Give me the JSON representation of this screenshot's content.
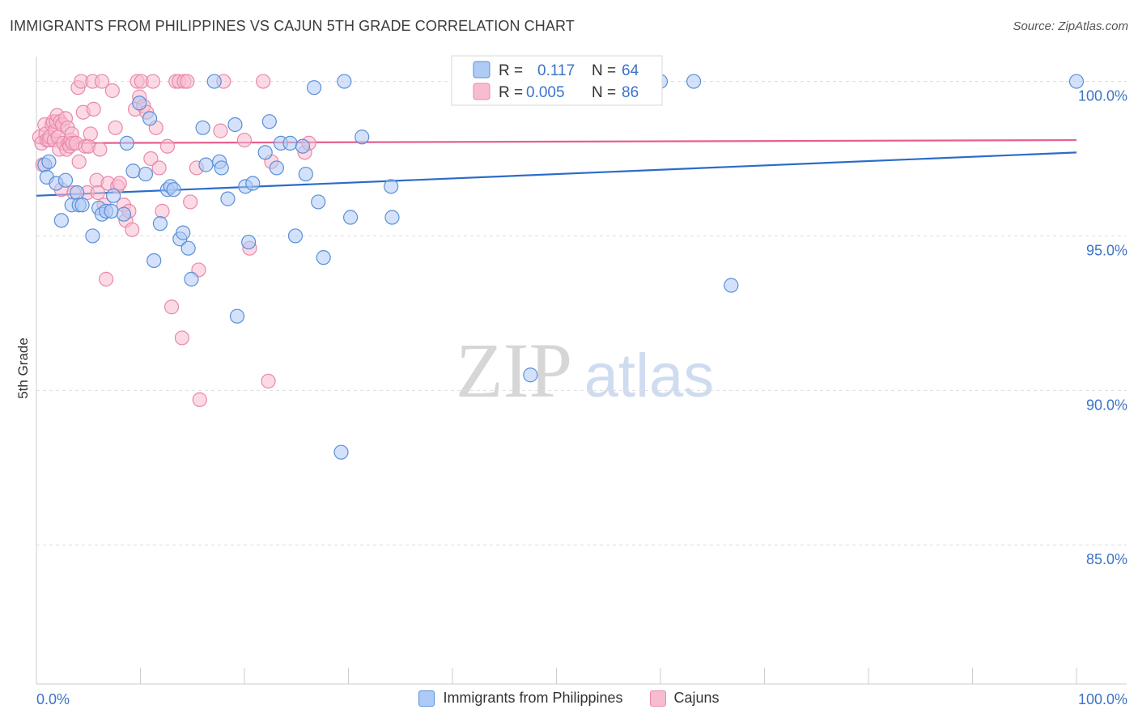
{
  "title": "IMMIGRANTS FROM PHILIPPINES VS CAJUN 5TH GRADE CORRELATION CHART",
  "source": "Source: ZipAtlas.com",
  "watermark": {
    "zip": "ZIP",
    "atlas": "atlas"
  },
  "colors": {
    "blue_fill": "#aecbf5",
    "blue_stroke": "#5a8fd8",
    "blue_line": "#2b6cc9",
    "pink_fill": "#f7bcd0",
    "pink_stroke": "#e889a8",
    "pink_line": "#e5608e",
    "axis_text": "#3b73c9",
    "grid": "#dddddd"
  },
  "chart_data": {
    "type": "scatter",
    "xlabel": "",
    "ylabel": "5th Grade",
    "xlim": [
      0,
      100
    ],
    "ylim": [
      80.5,
      100.8
    ],
    "x_tick_labels": [
      {
        "value": 0,
        "label": "0.0%"
      },
      {
        "value": 100,
        "label": "100.0%"
      }
    ],
    "y_ticks": [
      {
        "value": 100,
        "label": "100.0%"
      },
      {
        "value": 95,
        "label": "95.0%"
      },
      {
        "value": 90,
        "label": "90.0%"
      },
      {
        "value": 85,
        "label": "85.0%"
      }
    ],
    "legend_stats": [
      {
        "r_label": "R =",
        "r_value": "0.117",
        "n_label": "N =",
        "n_value": "64"
      },
      {
        "r_label": "R =",
        "r_value": "0.005",
        "n_label": "N =",
        "n_value": "86"
      }
    ],
    "series": [
      {
        "name": "Immigrants from Philippines",
        "trend": [
          [
            0,
            96.3
          ],
          [
            100,
            97.7
          ]
        ],
        "points": [
          [
            0.8,
            97.3
          ],
          [
            1.0,
            96.9
          ],
          [
            1.2,
            97.4
          ],
          [
            1.9,
            96.7
          ],
          [
            2.4,
            95.5
          ],
          [
            2.8,
            96.8
          ],
          [
            3.4,
            96.0
          ],
          [
            3.9,
            96.4
          ],
          [
            4.1,
            96.0
          ],
          [
            4.4,
            96.0
          ],
          [
            5.4,
            95.0
          ],
          [
            6.0,
            95.9
          ],
          [
            6.3,
            95.7
          ],
          [
            6.7,
            95.8
          ],
          [
            7.2,
            95.8
          ],
          [
            7.4,
            96.3
          ],
          [
            8.4,
            95.7
          ],
          [
            8.7,
            98.0
          ],
          [
            9.3,
            97.1
          ],
          [
            9.9,
            99.3
          ],
          [
            10.5,
            97.0
          ],
          [
            10.9,
            98.8
          ],
          [
            11.3,
            94.2
          ],
          [
            11.9,
            95.4
          ],
          [
            12.6,
            96.5
          ],
          [
            12.9,
            96.6
          ],
          [
            13.2,
            96.5
          ],
          [
            13.8,
            94.9
          ],
          [
            14.1,
            95.1
          ],
          [
            14.6,
            94.6
          ],
          [
            14.9,
            93.6
          ],
          [
            16.0,
            98.5
          ],
          [
            16.3,
            97.3
          ],
          [
            17.1,
            100.0
          ],
          [
            17.6,
            97.4
          ],
          [
            17.8,
            97.2
          ],
          [
            18.4,
            96.2
          ],
          [
            19.1,
            98.6
          ],
          [
            19.3,
            92.4
          ],
          [
            20.1,
            96.6
          ],
          [
            20.4,
            94.8
          ],
          [
            20.8,
            96.7
          ],
          [
            22.0,
            97.7
          ],
          [
            22.4,
            98.7
          ],
          [
            23.1,
            97.2
          ],
          [
            23.5,
            98.0
          ],
          [
            24.4,
            98.0
          ],
          [
            24.9,
            95.0
          ],
          [
            25.6,
            97.9
          ],
          [
            25.9,
            97.0
          ],
          [
            26.7,
            99.8
          ],
          [
            27.1,
            96.1
          ],
          [
            27.6,
            94.3
          ],
          [
            29.3,
            88.0
          ],
          [
            29.6,
            100.0
          ],
          [
            30.2,
            95.6
          ],
          [
            31.3,
            98.2
          ],
          [
            34.1,
            96.6
          ],
          [
            34.2,
            95.6
          ],
          [
            47.5,
            90.5
          ],
          [
            60.0,
            100.0
          ],
          [
            63.2,
            100.0
          ],
          [
            66.8,
            93.4
          ],
          [
            100.0,
            100.0
          ]
        ]
      },
      {
        "name": "Cajuns",
        "trend": [
          [
            0,
            98.0
          ],
          [
            100,
            98.1
          ]
        ],
        "points": [
          [
            0.3,
            98.2
          ],
          [
            0.5,
            98.0
          ],
          [
            0.6,
            97.3
          ],
          [
            0.8,
            98.6
          ],
          [
            0.9,
            98.3
          ],
          [
            1.0,
            98.1
          ],
          [
            1.2,
            98.1
          ],
          [
            1.3,
            98.2
          ],
          [
            1.5,
            98.6
          ],
          [
            1.6,
            98.7
          ],
          [
            1.7,
            98.1
          ],
          [
            1.8,
            98.4
          ],
          [
            1.9,
            98.7
          ],
          [
            2.0,
            98.9
          ],
          [
            2.1,
            98.2
          ],
          [
            2.2,
            97.8
          ],
          [
            2.3,
            98.7
          ],
          [
            2.4,
            96.5
          ],
          [
            2.5,
            98.6
          ],
          [
            2.6,
            98.0
          ],
          [
            2.8,
            98.8
          ],
          [
            2.9,
            97.8
          ],
          [
            3.0,
            98.5
          ],
          [
            3.1,
            98.0
          ],
          [
            3.2,
            97.9
          ],
          [
            3.3,
            98.1
          ],
          [
            3.4,
            98.3
          ],
          [
            3.5,
            98.0
          ],
          [
            3.6,
            96.4
          ],
          [
            3.8,
            98.0
          ],
          [
            4.0,
            99.8
          ],
          [
            4.1,
            97.4
          ],
          [
            4.3,
            100.0
          ],
          [
            4.5,
            99.0
          ],
          [
            4.7,
            97.9
          ],
          [
            4.9,
            96.4
          ],
          [
            5.0,
            97.9
          ],
          [
            5.2,
            98.3
          ],
          [
            5.4,
            100.0
          ],
          [
            5.5,
            99.1
          ],
          [
            5.8,
            96.8
          ],
          [
            5.9,
            96.4
          ],
          [
            6.1,
            97.8
          ],
          [
            6.3,
            100.0
          ],
          [
            6.5,
            96.0
          ],
          [
            6.7,
            93.6
          ],
          [
            6.9,
            96.7
          ],
          [
            7.3,
            99.7
          ],
          [
            7.6,
            98.5
          ],
          [
            7.8,
            96.6
          ],
          [
            8.0,
            96.7
          ],
          [
            8.4,
            96.0
          ],
          [
            8.6,
            95.5
          ],
          [
            8.9,
            95.8
          ],
          [
            9.2,
            95.2
          ],
          [
            9.5,
            99.1
          ],
          [
            9.7,
            100.0
          ],
          [
            9.9,
            99.5
          ],
          [
            10.1,
            100.0
          ],
          [
            10.3,
            99.2
          ],
          [
            10.6,
            99.0
          ],
          [
            11.0,
            97.5
          ],
          [
            11.2,
            100.0
          ],
          [
            11.5,
            98.5
          ],
          [
            11.8,
            97.2
          ],
          [
            12.1,
            95.8
          ],
          [
            12.6,
            97.9
          ],
          [
            13.0,
            92.7
          ],
          [
            13.4,
            100.0
          ],
          [
            13.7,
            100.0
          ],
          [
            14.0,
            91.7
          ],
          [
            14.2,
            100.0
          ],
          [
            14.5,
            100.0
          ],
          [
            14.8,
            96.1
          ],
          [
            15.4,
            97.2
          ],
          [
            15.6,
            93.9
          ],
          [
            15.7,
            89.7
          ],
          [
            17.7,
            98.4
          ],
          [
            18.0,
            100.0
          ],
          [
            20.0,
            98.1
          ],
          [
            20.5,
            94.6
          ],
          [
            21.8,
            100.0
          ],
          [
            22.3,
            90.3
          ],
          [
            22.6,
            97.4
          ],
          [
            25.8,
            97.7
          ],
          [
            26.2,
            98.0
          ]
        ]
      }
    ]
  }
}
